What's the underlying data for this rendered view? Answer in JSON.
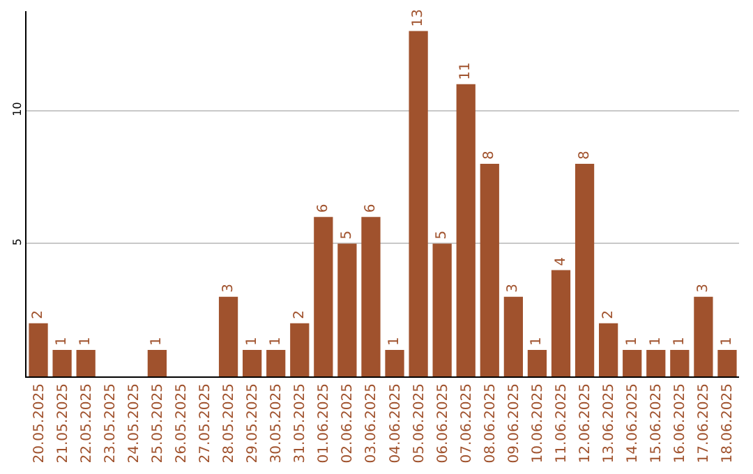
{
  "chart_data": {
    "type": "bar",
    "categories": [
      "20.05.2025",
      "21.05.2025",
      "22.05.2025",
      "23.05.2025",
      "24.05.2025",
      "25.05.2025",
      "26.05.2025",
      "27.05.2025",
      "28.05.2025",
      "29.05.2025",
      "30.05.2025",
      "31.05.2025",
      "01.06.2025",
      "02.06.2025",
      "03.06.2025",
      "04.06.2025",
      "05.06.2025",
      "06.06.2025",
      "07.06.2025",
      "08.06.2025",
      "09.06.2025",
      "10.06.2025",
      "11.06.2025",
      "12.06.2025",
      "13.06.2025",
      "14.06.2025",
      "15.06.2025",
      "16.06.2025",
      "17.06.2025",
      "18.06.2025"
    ],
    "values": [
      2,
      1,
      1,
      0,
      0,
      1,
      0,
      0,
      3,
      1,
      1,
      2,
      6,
      5,
      6,
      1,
      13,
      5,
      11,
      8,
      3,
      1,
      4,
      8,
      2,
      1,
      1,
      1,
      3,
      1
    ],
    "value_labels": [
      "2",
      "1",
      "1",
      null,
      null,
      "1",
      null,
      null,
      "3",
      "1",
      "1",
      "2",
      "6",
      "5",
      "6",
      "1",
      "13",
      "5",
      "11",
      "8",
      "3",
      "1",
      "4",
      "8",
      "2",
      "1",
      "1",
      "1",
      "3",
      "1"
    ],
    "color": "#a0522d",
    "ylim": [
      0,
      13.75
    ],
    "yticks": [
      5,
      10
    ],
    "grid": "y",
    "legend": false
  }
}
